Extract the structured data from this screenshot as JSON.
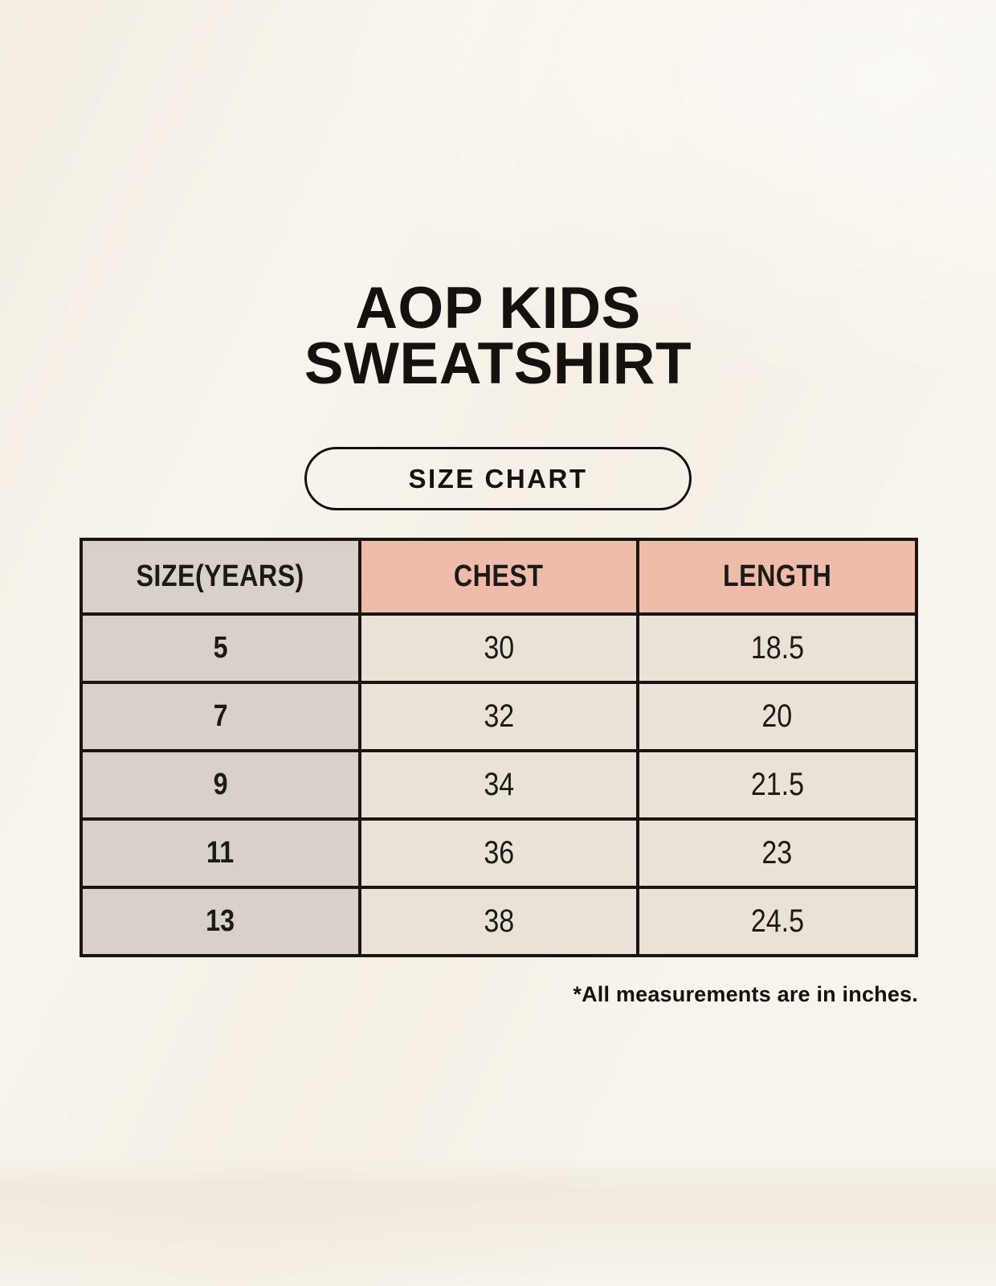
{
  "page": {
    "title": "AOP KIDS\nSWEATSHIRT",
    "badge_label": "SIZE CHART",
    "footnote": "*All measurements are in inches."
  },
  "table": {
    "headers": [
      "SIZE(YEARS)",
      "CHEST",
      "LENGTH"
    ],
    "rows": [
      [
        "5",
        "30",
        "18.5"
      ],
      [
        "7",
        "32",
        "20"
      ],
      [
        "9",
        "34",
        "21.5"
      ],
      [
        "11",
        "36",
        "23"
      ],
      [
        "13",
        "38",
        "24.5"
      ]
    ]
  },
  "chart_data": {
    "type": "table",
    "title": "AOP KIDS SWEATSHIRT — SIZE CHART",
    "columns": [
      "SIZE(YEARS)",
      "CHEST",
      "LENGTH"
    ],
    "rows": [
      {
        "size_years": 5,
        "chest": 30,
        "length": 18.5
      },
      {
        "size_years": 7,
        "chest": 32,
        "length": 20
      },
      {
        "size_years": 9,
        "chest": 34,
        "length": 21.5
      },
      {
        "size_years": 11,
        "chest": 36,
        "length": 23
      },
      {
        "size_years": 13,
        "chest": 38,
        "length": 24.5
      }
    ],
    "units": "inches",
    "note": "*All measurements are in inches."
  },
  "colors": {
    "background": "#f8f4ec",
    "header_accent": "#efbcab",
    "column_gray": "#d8d1cb",
    "cell_cream": "#e9e2d6",
    "border": "#1b1511",
    "text": "#14110e"
  }
}
